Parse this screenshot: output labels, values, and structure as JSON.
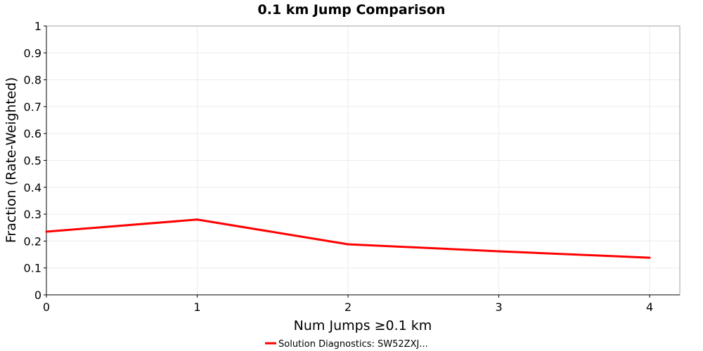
{
  "chart_data": {
    "type": "line",
    "title": "0.1 km Jump Comparison",
    "xlabel": "Num Jumps ≥0.1 km",
    "ylabel": "Fraction (Rate-Weighted)",
    "xlim": [
      0,
      4.2
    ],
    "ylim": [
      0,
      1
    ],
    "x_ticks": [
      0,
      1,
      2,
      3,
      4
    ],
    "y_ticks": [
      0,
      0.1,
      0.2,
      0.3,
      0.4,
      0.5,
      0.6,
      0.7,
      0.8,
      0.9,
      1
    ],
    "y_tick_labels": [
      "0",
      "0.1",
      "0.2",
      "0.3",
      "0.4",
      "0.5",
      "0.6",
      "0.7",
      "0.8",
      "0.9",
      "1"
    ],
    "grid": true,
    "legend_position": "bottom-center",
    "series": [
      {
        "name": "Solution Diagnostics: SW52ZXJ...",
        "color": "#ff0000",
        "x": [
          0,
          1,
          2,
          3,
          4
        ],
        "y": [
          0.235,
          0.28,
          0.188,
          0.162,
          0.138
        ]
      }
    ]
  }
}
